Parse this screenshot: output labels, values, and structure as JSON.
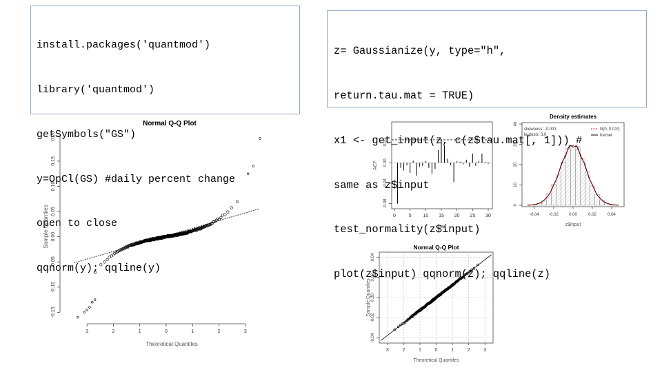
{
  "code_left": {
    "lines": [
      "install.packages('quantmod')",
      "library('quantmod')",
      "getSymbols(\"GS\")",
      "y=OpCl(GS) #daily percent change",
      "open to close",
      "qqnorm(y); qqline(y)"
    ]
  },
  "code_right": {
    "lines": [
      "z= Gaussianize(y, type=\"h\",",
      "return.tau.mat = TRUE)",
      "x1 <- get_input(z, c(z$tau.mat[, 1])) #",
      "same as z$input",
      "test_normality(z$input)",
      "plot(z$input) qqnorm(z); qqline(z)"
    ]
  },
  "chart_data": [
    {
      "type": "scatter",
      "title": "Normal Q-Q Plot",
      "xlabel": "Theoretical Quantiles",
      "ylabel": "Sample Quantiles",
      "x_ticks": [
        "3",
        "2",
        "1",
        "0",
        "1",
        "2",
        "3"
      ],
      "y_ticks": [
        "-0.15",
        "-0.10",
        "-0.05",
        "0.00",
        "0.05",
        "0.10",
        "0.15",
        "0.20"
      ],
      "xlim": [
        -3.5,
        3.5
      ],
      "ylim": [
        -0.17,
        0.21
      ],
      "reference_line": {
        "x": [
          -3.5,
          3.5
        ],
        "y": [
          -0.052,
          0.055
        ]
      },
      "tail_points": {
        "x": [
          -3.35,
          -3.1,
          -3.0,
          -2.9,
          -2.8,
          -2.7,
          3.55,
          3.3,
          3.1
        ],
        "y": [
          -0.16,
          -0.15,
          -0.145,
          -0.14,
          -0.13,
          -0.125,
          0.195,
          0.14,
          0.125
        ]
      }
    },
    {
      "type": "bar",
      "title": "",
      "xlabel": "Lag",
      "ylabel": "ACF",
      "x_ticks": [
        "0",
        "5",
        "10",
        "15",
        "20",
        "25",
        "30"
      ],
      "y_ticks": [
        "-0.08",
        "-0.04",
        "0.00",
        "0.04"
      ],
      "ylim": [
        -0.09,
        0.08
      ],
      "significance_bound": 0.045,
      "lags": [
        1,
        2,
        3,
        4,
        5,
        6,
        7,
        8,
        9,
        10,
        11,
        12,
        13,
        14,
        15,
        16,
        17,
        18,
        19,
        20,
        21,
        22,
        23,
        24,
        25,
        26,
        27,
        28,
        29,
        30
      ],
      "values": [
        -0.08,
        -0.01,
        -0.015,
        -0.005,
        -0.02,
        0.004,
        -0.025,
        -0.008,
        -0.006,
        0.003,
        -0.01,
        -0.022,
        -0.012,
        0.025,
        0.045,
        0.034,
        0.008,
        -0.005,
        -0.038,
        0.003,
        0.002,
        -0.003,
        0.006,
        -0.008,
        0.018,
        -0.006,
        0.004,
        0.018,
        0.002,
        -0.002
      ]
    },
    {
      "type": "area",
      "title": "Density estimates",
      "xlabel": "z$input",
      "ylabel": "",
      "x_ticks": [
        "-0.04",
        "-0.02",
        "0.00",
        "0.02",
        "0.04"
      ],
      "y_ticks": [
        "0",
        "10",
        "20",
        "30",
        "40"
      ],
      "xlim": [
        -0.05,
        0.05
      ],
      "ylim": [
        0,
        40
      ],
      "legend": [
        "N(0, 0.01²)",
        "Kernel"
      ],
      "annotations": [
        "skewness: -0.003",
        "kurtosis: 3.0"
      ],
      "density_x": [
        -0.045,
        -0.04,
        -0.035,
        -0.03,
        -0.025,
        -0.02,
        -0.015,
        -0.01,
        -0.005,
        0,
        0.005,
        0.01,
        0.015,
        0.02,
        0.025,
        0.03,
        0.035,
        0.04,
        0.045
      ],
      "density_y": [
        0.1,
        0.3,
        1.0,
        2.6,
        5.5,
        10.1,
        16.2,
        22.5,
        27.5,
        29.5,
        27.5,
        22.5,
        16.2,
        10.1,
        5.5,
        2.6,
        1.0,
        0.3,
        0.1
      ]
    },
    {
      "type": "scatter",
      "title": "Normal Q-Q Plot",
      "xlabel": "Theoretical Quantiles",
      "ylabel": "Sample Quantiles",
      "x_ticks": [
        "3",
        "2",
        "1",
        "0",
        "1",
        "2",
        "3"
      ],
      "y_ticks": [
        "-0.04",
        "-0.02",
        "0.00",
        "0.02",
        "0.04"
      ],
      "xlim": [
        -3.5,
        3.5
      ],
      "ylim": [
        -0.045,
        0.045
      ]
    }
  ]
}
